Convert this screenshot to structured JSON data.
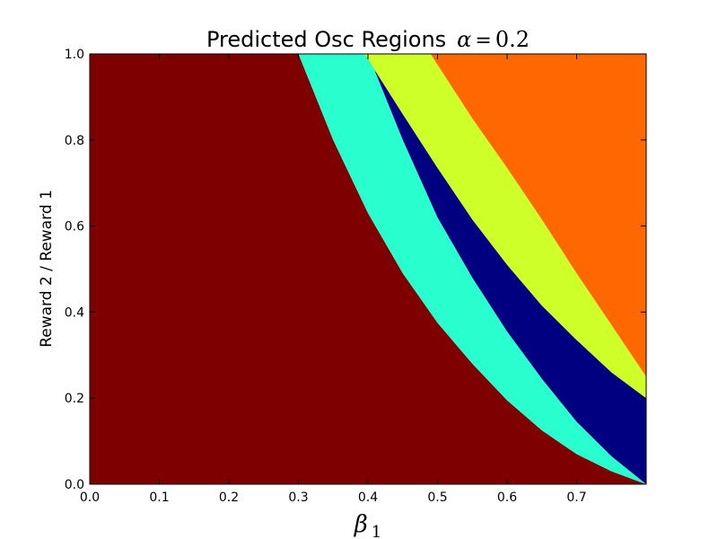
{
  "chart_data": {
    "type": "heatmap",
    "title": {
      "text": "Predicted Osc Regions",
      "math_symbol": "α",
      "math_equals": "=",
      "math_value": "0.2"
    },
    "xlabel": {
      "symbol": "β",
      "subscript": "1"
    },
    "ylabel": "Reward 2 / Reward 1",
    "xlim": [
      0.0,
      0.8
    ],
    "ylim": [
      0.0,
      1.0
    ],
    "xticks": [
      "0.0",
      "0.1",
      "0.2",
      "0.3",
      "0.4",
      "0.5",
      "0.6",
      "0.7"
    ],
    "yticks": [
      "0.0",
      "0.2",
      "0.4",
      "0.6",
      "0.8",
      "1.0"
    ],
    "grid": false,
    "colors": {
      "region_1": "#7f0000",
      "region_2": "#29ffce",
      "region_3": "#000080",
      "region_4": "#ceff29",
      "region_5": "#ff6800"
    },
    "boundaries": [
      {
        "between": [
          "region_1",
          "region_2"
        ],
        "points": [
          [
            0.3,
            1.0
          ],
          [
            0.35,
            0.8
          ],
          [
            0.4,
            0.63
          ],
          [
            0.45,
            0.49
          ],
          [
            0.5,
            0.375
          ],
          [
            0.55,
            0.28
          ],
          [
            0.6,
            0.195
          ],
          [
            0.65,
            0.125
          ],
          [
            0.7,
            0.07
          ],
          [
            0.75,
            0.03
          ],
          [
            0.8,
            0.0
          ]
        ]
      },
      {
        "between": [
          "region_2",
          "region_3"
        ],
        "points": [
          [
            0.4,
            1.0
          ],
          [
            0.45,
            0.8
          ],
          [
            0.5,
            0.62
          ],
          [
            0.55,
            0.48
          ],
          [
            0.6,
            0.355
          ],
          [
            0.65,
            0.245
          ],
          [
            0.7,
            0.145
          ],
          [
            0.75,
            0.065
          ],
          [
            0.8,
            0.0
          ]
        ]
      },
      {
        "between": [
          "region_3",
          "region_4"
        ],
        "points": [
          [
            0.395,
            1.0
          ],
          [
            0.45,
            0.86
          ],
          [
            0.5,
            0.735
          ],
          [
            0.55,
            0.615
          ],
          [
            0.6,
            0.51
          ],
          [
            0.65,
            0.415
          ],
          [
            0.7,
            0.335
          ],
          [
            0.75,
            0.26
          ],
          [
            0.8,
            0.2
          ]
        ]
      },
      {
        "between": [
          "region_4",
          "region_5"
        ],
        "points": [
          [
            0.49,
            1.0
          ],
          [
            0.55,
            0.85
          ],
          [
            0.6,
            0.735
          ],
          [
            0.65,
            0.615
          ],
          [
            0.7,
            0.49
          ],
          [
            0.75,
            0.37
          ],
          [
            0.8,
            0.25
          ]
        ]
      }
    ]
  }
}
